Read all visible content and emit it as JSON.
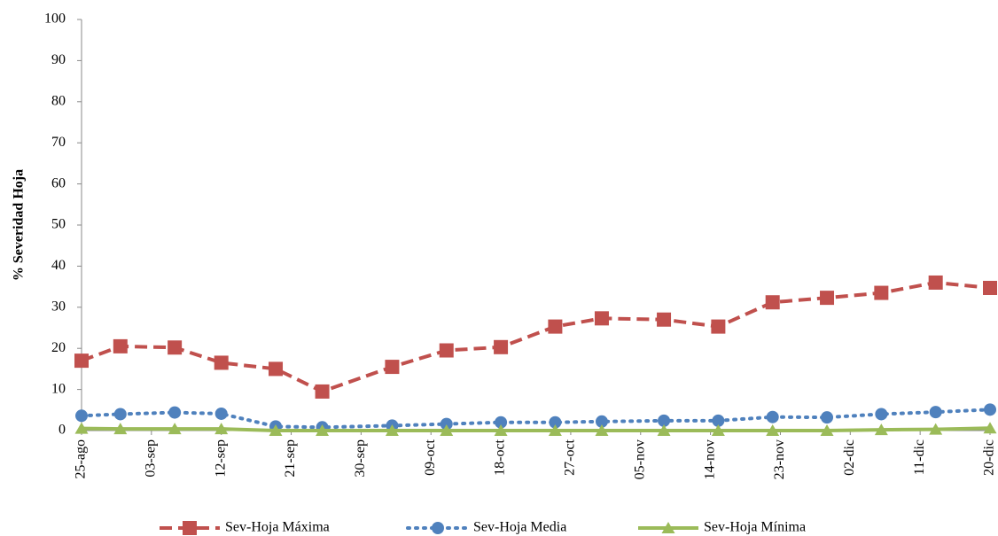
{
  "chart_data": {
    "type": "line",
    "y_label": "% Severidad Hoja",
    "x": [
      "25-ago",
      "30-ago",
      "06-sep",
      "12-sep",
      "19-sep",
      "25-sep",
      "04-oct",
      "11-oct",
      "18-oct",
      "25-oct",
      "31-oct",
      "08-nov",
      "15-nov",
      "22-nov",
      "29-nov",
      "06-dic",
      "13-dic",
      "20-dic"
    ],
    "xlim": [
      "25-ago",
      "20-dic"
    ],
    "xticks": [
      "25-ago",
      "03-sep",
      "12-sep",
      "21-sep",
      "30-sep",
      "09-oct",
      "18-oct",
      "27-oct",
      "05-nov",
      "14-nov",
      "23-nov",
      "02-dic",
      "11-dic",
      "20-dic"
    ],
    "ylim": [
      0,
      100
    ],
    "yticks": [
      0,
      10,
      20,
      30,
      40,
      50,
      60,
      70,
      80,
      90,
      100
    ],
    "grid": false,
    "legend": "bottom",
    "series": [
      {
        "name": "Sev-Hoja Máxima",
        "color": "#C0504D",
        "marker": "square",
        "dash": "dashed",
        "values": [
          17,
          20.5,
          20.2,
          16.5,
          15,
          9.5,
          15.5,
          19.5,
          20.3,
          25.3,
          27.3,
          27,
          25.3,
          31.2,
          32.3,
          33.5,
          36,
          34.7
        ]
      },
      {
        "name": "Sev-Hoja Media",
        "color": "#4F81BD",
        "marker": "circle",
        "dash": "dotted",
        "values": [
          3.6,
          4,
          4.4,
          4.1,
          1,
          0.8,
          1.2,
          1.6,
          2,
          2,
          2.2,
          2.4,
          2.4,
          3.3,
          3.2,
          4,
          4.5,
          5.1
        ]
      },
      {
        "name": "Sev-Hoja Mínima",
        "color": "#9BBB59",
        "marker": "triangle",
        "dash": "solid",
        "values": [
          0.5,
          0.4,
          0.4,
          0.4,
          0,
          0,
          0,
          0,
          0,
          0,
          0,
          0,
          0,
          0,
          0,
          0.2,
          0.3,
          0.6
        ]
      }
    ]
  }
}
